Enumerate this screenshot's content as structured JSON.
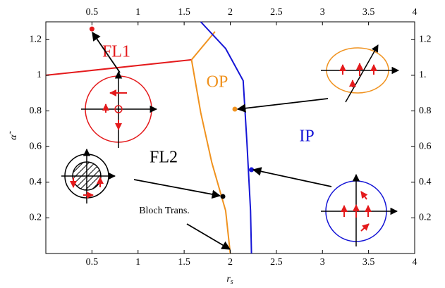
{
  "chart_data": {
    "type": "line",
    "xlabel": "r",
    "xlabel_sub": "s",
    "ylabel": "α̃",
    "xlim": [
      0,
      4
    ],
    "ylim": [
      0,
      1.3
    ],
    "xticks": [
      0.5,
      1,
      1.5,
      2,
      2.5,
      3,
      3.5,
      4
    ],
    "yticks": [
      0.2,
      0.4,
      0.6,
      0.8,
      1,
      1.2
    ],
    "y2ticks": [
      0.2,
      0.4,
      0.6,
      0.8,
      {
        "value": 1,
        "label": "1."
      },
      1.2
    ],
    "series": [
      {
        "color": "#e41a1c",
        "x": [
          0,
          1.58
        ],
        "values": [
          1.0,
          1.087
        ]
      },
      {
        "color": "#f0921e",
        "x": [
          1.58,
          1.835
        ],
        "values": [
          1.087,
          1.245
        ]
      },
      {
        "color": "#f0921e",
        "x": [
          1.58,
          1.68,
          1.8,
          1.95,
          2.0
        ],
        "values": [
          1.087,
          0.79,
          0.51,
          0.24,
          0
        ]
      },
      {
        "color": "#1515d6",
        "x": [
          1.68,
          1.95,
          2.14,
          2.18,
          2.22,
          2.23
        ],
        "values": [
          1.3,
          1.15,
          0.97,
          0.63,
          0.24,
          0
        ]
      }
    ],
    "points": {
      "x": [
        0.5,
        2.05,
        2.23,
        1.92
      ],
      "values": [
        1.26,
        0.81,
        0.47,
        0.32
      ],
      "colors": [
        "#e41a1c",
        "#f0921e",
        "#1515d6",
        "#000000"
      ]
    },
    "labels": {
      "fl1": "FL1",
      "op": "OP",
      "ip": "IP",
      "fl2": "FL2",
      "bloch": "Bloch Trans."
    }
  }
}
